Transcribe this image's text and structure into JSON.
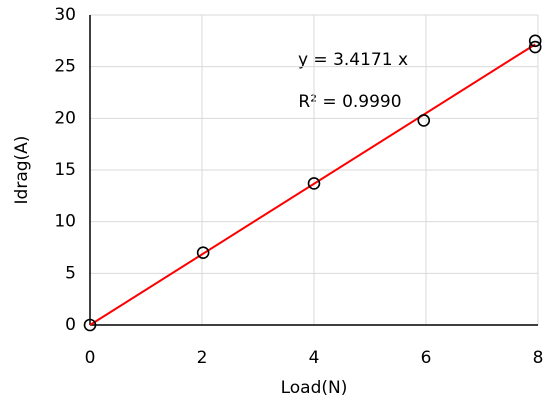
{
  "chart_data": {
    "type": "scatter",
    "xlabel": "Load(N)",
    "ylabel": "Idrag(A)",
    "series": [
      {
        "color": "#000000",
        "x": [
          0,
          2.02,
          4.0,
          5.96,
          7.95,
          7.95
        ],
        "values": [
          0,
          7.0,
          13.7,
          19.8,
          27.5,
          26.9
        ]
      }
    ],
    "trendline": {
      "color": "#ff0000",
      "x": [
        0,
        7.95
      ],
      "values": [
        0,
        27.16
      ]
    },
    "annotations": [
      "y = 3.4171 x",
      "R² = 0.9990"
    ],
    "xlim": [
      0,
      8
    ],
    "xticks": [
      0,
      2,
      4,
      6,
      8
    ],
    "ylim": [
      0,
      30
    ],
    "yticks": [
      0,
      5,
      10,
      15,
      20,
      25,
      30
    ],
    "grid": true
  }
}
